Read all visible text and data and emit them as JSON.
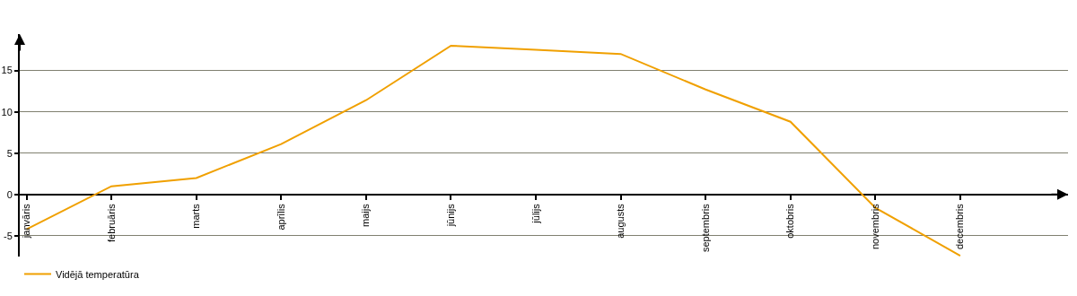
{
  "chart_data": {
    "type": "line",
    "categories": [
      "janvāris",
      "februāris",
      "marts",
      "aprīlis",
      "maijs",
      "jūnijs",
      "jūlijs",
      "augusts",
      "septembris",
      "oktobris",
      "novembris",
      "decembris"
    ],
    "series": [
      {
        "name": "Vidējā temperatūra",
        "color": "#f0a000",
        "values": [
          -4.2,
          1.0,
          2.0,
          6.1,
          11.4,
          18.0,
          17.5,
          17.0,
          12.7,
          8.8,
          -1.6,
          -7.4
        ]
      }
    ],
    "ylim": [
      -7.5,
      19.4
    ],
    "yticks": [
      -5,
      0,
      5,
      10,
      15
    ],
    "grid": "y",
    "legend": "bottom left",
    "marker": "none",
    "line_style": "solid"
  }
}
